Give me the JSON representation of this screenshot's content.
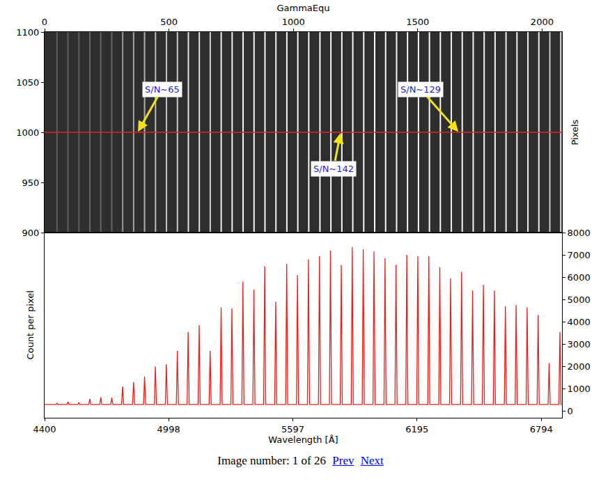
{
  "chart_data": [
    {
      "type": "line",
      "x_label": "GammaEqu",
      "y_label": "Pixels",
      "xlim": [
        0,
        2080
      ],
      "xticks": [
        0,
        500,
        1000,
        1500,
        2000
      ],
      "ylim": [
        900,
        1100
      ],
      "yticks": [
        900,
        950,
        1000,
        1050,
        1100
      ],
      "grid": false,
      "series": [
        {
          "type": "vlines",
          "x": [
            50,
            94,
            138,
            182,
            226,
            270,
            314,
            358,
            402,
            446,
            490,
            534,
            578,
            622,
            666,
            710,
            754,
            798,
            842,
            886,
            930,
            974,
            1018,
            1062,
            1107,
            1151,
            1195,
            1239,
            1283,
            1327,
            1371,
            1415,
            1459,
            1503,
            1547,
            1591,
            1635,
            1679,
            1723,
            1767,
            1811,
            1855,
            1899,
            1943,
            1987,
            2031,
            2075
          ],
          "colors": [
            "#5e5e5e",
            "#5e5e5e",
            "#5e5e5e",
            "#666666",
            "#666666",
            "#666666",
            "#9a9a9a",
            "#a4a4a4",
            "#b0b0b0",
            "#bcbcbc",
            "#c4c4c4",
            "#cccccc",
            "#e0e0e0",
            "#e4e4e4",
            "#d0d0d0",
            "#f0f0f0",
            "#f0f0f0",
            "#f4f4f4",
            "#f4f4f4",
            "#f8f8f8",
            "#f0f0f0",
            "#f8f8f8",
            "#f8f8f8",
            "#f8f8f8",
            "#f8f8f8",
            "#f8f8f8",
            "#f8f8f8",
            "#f8f8f8",
            "#f8f8f8",
            "#f8f8f8",
            "#f8f8f8",
            "#f8f8f8",
            "#f8f8f8",
            "#f8f8f8",
            "#f8f8f8",
            "#f8f8f8",
            "#f4f4f4",
            "#f4f4f4",
            "#f4f4f4",
            "#f4f4f4",
            "#f4f4f4",
            "#f0f0f0",
            "#f0f0f0",
            "#f0f0f0",
            "#ececec",
            "#c8c8c8",
            "#e0e0e0"
          ]
        },
        {
          "x": [
            0,
            2080
          ],
          "values": [
            1000,
            1000
          ],
          "color": "#e8201c"
        }
      ],
      "annotations": [
        {
          "text": "S/N~65",
          "x": 374,
          "y": 1000
        },
        {
          "text": "S/N~142",
          "x": 1190,
          "y": 1000
        },
        {
          "text": "S/N~129",
          "x": 1665,
          "y": 1000
        }
      ]
    },
    {
      "type": "line",
      "x_label": "Wavelength [Å]",
      "y_label": "Count per pixel",
      "xlim": [
        4400,
        6894
      ],
      "xticks": [
        4400,
        4998,
        5597,
        6195,
        6794
      ],
      "ylim": [
        -300,
        8000
      ],
      "yticks": [
        0,
        1000,
        2000,
        3000,
        4000,
        5000,
        6000,
        7000,
        8000
      ],
      "grid": false,
      "color": "#e8201c",
      "x": [
        4400,
        4455,
        4460,
        4465,
        4508,
        4513,
        4518,
        4560,
        4565,
        4570,
        4613,
        4618,
        4623,
        4666,
        4671,
        4676,
        4719,
        4724,
        4729,
        4771,
        4776,
        4781,
        4824,
        4829,
        4834,
        4877,
        4882,
        4887,
        4929,
        4934,
        4939,
        4982,
        4987,
        4992,
        5035,
        5040,
        5045,
        5087,
        5092,
        5097,
        5140,
        5145,
        5150,
        5193,
        5198,
        5203,
        5246,
        5251,
        5256,
        5298,
        5303,
        5308,
        5351,
        5356,
        5361,
        5404,
        5409,
        5414,
        5456,
        5461,
        5466,
        5509,
        5514,
        5519,
        5562,
        5567,
        5572,
        5614,
        5619,
        5624,
        5667,
        5672,
        5677,
        5720,
        5725,
        5730,
        5773,
        5778,
        5783,
        5825,
        5830,
        5835,
        5878,
        5883,
        5888,
        5931,
        5936,
        5941,
        5983,
        5988,
        5993,
        6036,
        6041,
        6046,
        6089,
        6094,
        6099,
        6141,
        6146,
        6151,
        6194,
        6199,
        6204,
        6247,
        6252,
        6257,
        6300,
        6305,
        6310,
        6352,
        6357,
        6362,
        6405,
        6410,
        6415,
        6458,
        6463,
        6468,
        6510,
        6515,
        6520,
        6563,
        6568,
        6573,
        6616,
        6621,
        6626,
        6668,
        6673,
        6678,
        6721,
        6726,
        6731,
        6774,
        6779,
        6784,
        6827,
        6832,
        6837,
        6879,
        6884,
        6889,
        6894
      ],
      "values": [
        300,
        300,
        350,
        300,
        300,
        420,
        300,
        300,
        380,
        300,
        300,
        550,
        300,
        300,
        620,
        300,
        300,
        600,
        300,
        300,
        1100,
        300,
        300,
        1300,
        300,
        300,
        1550,
        300,
        300,
        2000,
        300,
        300,
        2100,
        300,
        300,
        2700,
        300,
        300,
        3550,
        300,
        300,
        3850,
        300,
        300,
        2700,
        300,
        300,
        4650,
        300,
        300,
        4600,
        300,
        300,
        5800,
        300,
        300,
        5450,
        300,
        300,
        6500,
        300,
        300,
        4900,
        300,
        300,
        6600,
        300,
        300,
        6100,
        300,
        300,
        6800,
        300,
        300,
        6950,
        300,
        300,
        7200,
        300,
        300,
        6550,
        300,
        300,
        7350,
        300,
        300,
        7250,
        300,
        300,
        7150,
        300,
        300,
        6850,
        300,
        300,
        6550,
        300,
        300,
        7000,
        300,
        300,
        6950,
        300,
        300,
        6950,
        300,
        300,
        6450,
        300,
        300,
        5950,
        300,
        300,
        6250,
        300,
        300,
        5400,
        300,
        300,
        5650,
        300,
        300,
        5400,
        300,
        300,
        4700,
        300,
        300,
        4750,
        300,
        300,
        4650,
        300,
        300,
        4300,
        300,
        300,
        2150,
        300,
        300,
        3550,
        300,
        300
      ]
    }
  ],
  "caption": {
    "text": "Image number: 1 of 26",
    "links": [
      "Prev",
      "Next"
    ]
  }
}
